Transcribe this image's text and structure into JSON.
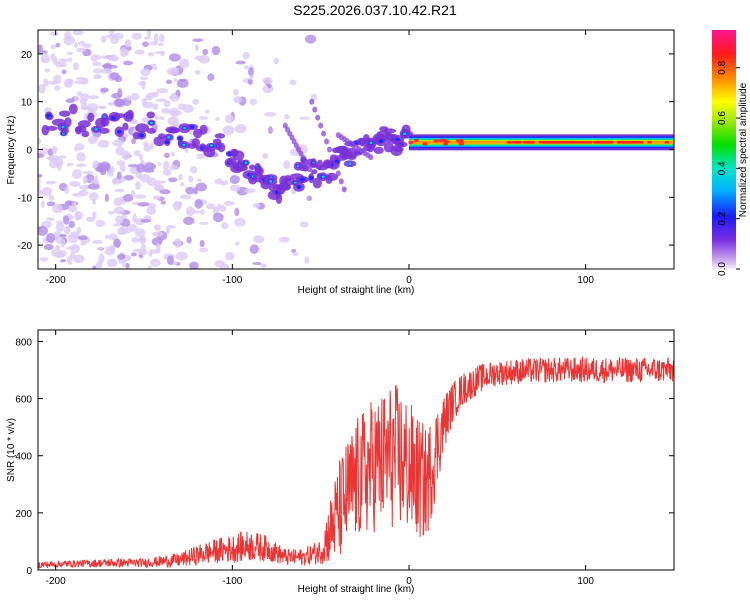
{
  "title": "S225.2026.037.10.42.R21",
  "chart_data": [
    {
      "type": "heatmap",
      "name": "spectrogram",
      "xlabel": "Height of straight line (km)",
      "ylabel": "Frequency (Hz)",
      "xlim": [
        -210,
        150
      ],
      "ylim": [
        -25,
        25
      ],
      "xticks": [
        -200,
        -100,
        0,
        100
      ],
      "yticks": [
        20,
        10,
        0,
        -10,
        -20
      ],
      "colorbar": {
        "label": "Normalized spectral amplitude",
        "range": [
          0.0,
          0.95
        ],
        "ticks": [
          "0.0",
          "0.2",
          "0.4",
          "0.6",
          "0.8"
        ],
        "tick_values": [
          0.0,
          0.2,
          0.4,
          0.6,
          0.8
        ]
      },
      "features": {
        "noise_region_x": [
          -210,
          -40
        ],
        "band_center_freq": 1.5,
        "band_start_x": 0,
        "band_end_x": 150,
        "dispersed_track": [
          {
            "x": -205,
            "f": 5
          },
          {
            "x": -190,
            "f": 6
          },
          {
            "x": -170,
            "f": 5
          },
          {
            "x": -150,
            "f": 5
          },
          {
            "x": -130,
            "f": 3
          },
          {
            "x": -115,
            "f": 2
          },
          {
            "x": -100,
            "f": -1
          },
          {
            "x": -90,
            "f": -4
          },
          {
            "x": -80,
            "f": -7
          },
          {
            "x": -70,
            "f": -9
          },
          {
            "x": -60,
            "f": -4
          },
          {
            "x": -50,
            "f": -5
          },
          {
            "x": -40,
            "f": -2
          },
          {
            "x": -30,
            "f": 0
          },
          {
            "x": -20,
            "f": 2
          },
          {
            "x": -10,
            "f": 2
          },
          {
            "x": 0,
            "f": 2
          }
        ]
      }
    },
    {
      "type": "line",
      "name": "snr",
      "xlabel": "Height of straight line (km)",
      "ylabel": "SNR (10 * v/v)",
      "xlim": [
        -210,
        150
      ],
      "ylim": [
        0,
        840
      ],
      "xticks": [
        -200,
        -100,
        0,
        100
      ],
      "yticks": [
        0,
        200,
        400,
        600,
        800
      ],
      "series": [
        {
          "name": "SNR",
          "color": "#ee3333",
          "x": [
            -210,
            -190,
            -170,
            -150,
            -130,
            -115,
            -100,
            -90,
            -80,
            -70,
            -60,
            -50,
            -40,
            -35,
            -30,
            -25,
            -20,
            -15,
            -10,
            -5,
            0,
            5,
            10,
            15,
            20,
            25,
            30,
            40,
            50,
            60,
            80,
            100,
            120,
            150
          ],
          "values": [
            18,
            22,
            25,
            25,
            35,
            60,
            75,
            85,
            75,
            45,
            45,
            65,
            200,
            260,
            310,
            340,
            370,
            380,
            400,
            390,
            360,
            320,
            300,
            410,
            520,
            590,
            630,
            670,
            690,
            695,
            700,
            700,
            700,
            700
          ],
          "noise": [
            12,
            12,
            15,
            15,
            25,
            40,
            50,
            55,
            45,
            30,
            30,
            45,
            180,
            200,
            220,
            230,
            240,
            250,
            260,
            260,
            240,
            220,
            200,
            160,
            100,
            70,
            60,
            50,
            45,
            45,
            45,
            45,
            45,
            45
          ]
        }
      ]
    }
  ]
}
